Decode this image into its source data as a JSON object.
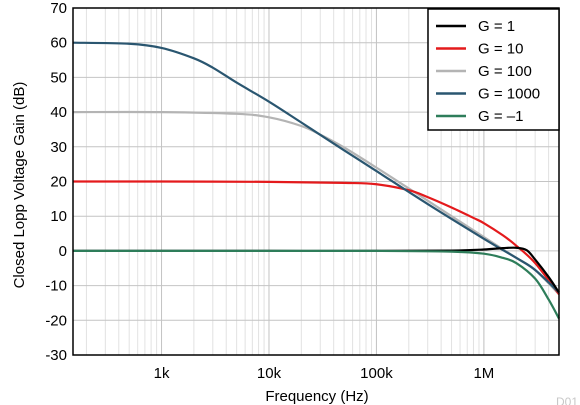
{
  "chart_data": {
    "type": "line",
    "xlabel": "Frequency (Hz)",
    "ylabel": "Closed Lopp Voltage Gain (dB)",
    "xscale": "log",
    "xlim": [
      150,
      5000000
    ],
    "ylim": [
      -30,
      70
    ],
    "yticks": [
      70,
      60,
      50,
      40,
      30,
      20,
      10,
      0,
      -10,
      -20,
      -30
    ],
    "yticklabels": [
      "70",
      "60",
      "50",
      "40",
      "30",
      "20",
      "10",
      "0",
      "-10",
      "-20",
      "-30"
    ],
    "xticks": [
      1000,
      10000,
      100000,
      1000000
    ],
    "xticklabels": [
      "1k",
      "10k",
      "100k",
      "1M"
    ],
    "grid": true,
    "legend_position": "top-right",
    "corner_text": "D01",
    "series": [
      {
        "name": "G = 1",
        "color": "#000000",
        "x": [
          150,
          1000,
          10000,
          100000,
          500000,
          1000000,
          1500000,
          2000000,
          2500000,
          3000000,
          4000000,
          5000000
        ],
        "y": [
          0,
          0,
          0,
          0,
          0.1,
          0.4,
          0.8,
          0.9,
          0.2,
          -2.5,
          -7.5,
          -12
        ]
      },
      {
        "name": "G = 10",
        "color": "#e41a1c",
        "x": [
          150,
          1000,
          10000,
          50000,
          100000,
          200000,
          300000,
          500000,
          800000,
          1000000,
          1500000,
          2000000,
          3000000,
          5000000
        ],
        "y": [
          20,
          20,
          19.9,
          19.6,
          19.2,
          17.5,
          15.5,
          12.5,
          9.5,
          8,
          4.5,
          1.5,
          -3.5,
          -12.5
        ]
      },
      {
        "name": "G = 100",
        "color": "#b4b4b4",
        "x": [
          150,
          1000,
          5000,
          10000,
          20000,
          30000,
          50000,
          100000,
          200000,
          500000,
          1000000,
          2000000,
          3000000,
          5000000
        ],
        "y": [
          40,
          40,
          39.5,
          38.5,
          36,
          33.5,
          29.8,
          24,
          18,
          10,
          4,
          -2,
          -5.5,
          -12.5
        ]
      },
      {
        "name": "G = 1000",
        "color": "#2a5670",
        "x": [
          150,
          500,
          1000,
          2000,
          3000,
          5000,
          10000,
          20000,
          50000,
          100000,
          300000,
          1000000,
          2000000,
          3000000,
          5000000
        ],
        "y": [
          60,
          59.7,
          58.5,
          55.5,
          52.8,
          48.5,
          43,
          37,
          29,
          23,
          13.5,
          3.5,
          -2,
          -5.5,
          -12
        ]
      },
      {
        "name": "G = –1",
        "color": "#2e7d5a",
        "x": [
          150,
          1000,
          10000,
          100000,
          500000,
          1000000,
          1500000,
          2000000,
          3000000,
          4000000,
          5000000
        ],
        "y": [
          0,
          0,
          0,
          0,
          -0.2,
          -0.8,
          -2,
          -3.5,
          -8,
          -14,
          -19.5
        ]
      }
    ]
  }
}
